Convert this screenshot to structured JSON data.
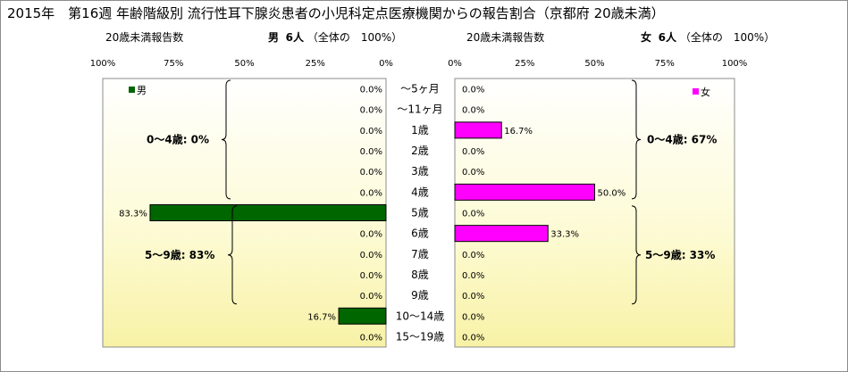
{
  "title": "2015年　第16週 年齢階級別 流行性耳下腺炎患者の小児科定点医療機関からの報告割合（京都府 20歳未満）",
  "left_header": {
    "caption": "20歳未満報告数",
    "sex": "男",
    "count": "6人",
    "share": "（全体の　100%）"
  },
  "right_header": {
    "caption": "20歳未満報告数",
    "sex": "女",
    "count": "6人",
    "share": "（全体の　100%）"
  },
  "chart_data": [
    {
      "type": "bar",
      "orientation": "horizontal",
      "direction": "right-to-left",
      "legend": "男",
      "legend_position": "top-left",
      "color": "#006600",
      "xlim": [
        0,
        100
      ],
      "x_ticks": [
        "100%",
        "75%",
        "50%",
        "25%",
        "0%"
      ],
      "categories": [
        "～5ヶ月",
        "～11ヶ月",
        "1歳",
        "2歳",
        "3歳",
        "4歳",
        "5歳",
        "6歳",
        "7歳",
        "8歳",
        "9歳",
        "10～14歳",
        "15～19歳"
      ],
      "values": [
        0.0,
        0.0,
        0.0,
        0.0,
        0.0,
        0.0,
        83.3,
        0.0,
        0.0,
        0.0,
        0.0,
        16.7,
        0.0
      ],
      "value_labels": [
        "0.0%",
        "0.0%",
        "0.0%",
        "0.0%",
        "0.0%",
        "0.0%",
        "83.3%",
        "0.0%",
        "0.0%",
        "0.0%",
        "0.0%",
        "16.7%",
        "0.0%"
      ],
      "group_annotations": [
        "0～4歳: 0%",
        "5～9歳: 83%"
      ]
    },
    {
      "type": "bar",
      "orientation": "horizontal",
      "direction": "left-to-right",
      "legend": "女",
      "legend_position": "top-right",
      "color": "#ff00ff",
      "xlim": [
        0,
        100
      ],
      "x_ticks": [
        "0%",
        "25%",
        "50%",
        "75%",
        "100%"
      ],
      "categories": [
        "～5ヶ月",
        "～11ヶ月",
        "1歳",
        "2歳",
        "3歳",
        "4歳",
        "5歳",
        "6歳",
        "7歳",
        "8歳",
        "9歳",
        "10～14歳",
        "15～19歳"
      ],
      "values": [
        0.0,
        0.0,
        16.7,
        0.0,
        0.0,
        50.0,
        0.0,
        33.3,
        0.0,
        0.0,
        0.0,
        0.0,
        0.0
      ],
      "value_labels": [
        "0.0%",
        "0.0%",
        "16.7%",
        "0.0%",
        "0.0%",
        "50.0%",
        "0.0%",
        "33.3%",
        "0.0%",
        "0.0%",
        "0.0%",
        "0.0%",
        "0.0%"
      ],
      "group_annotations": [
        "0～4歳: 67%",
        "5～9歳: 33%"
      ]
    }
  ]
}
